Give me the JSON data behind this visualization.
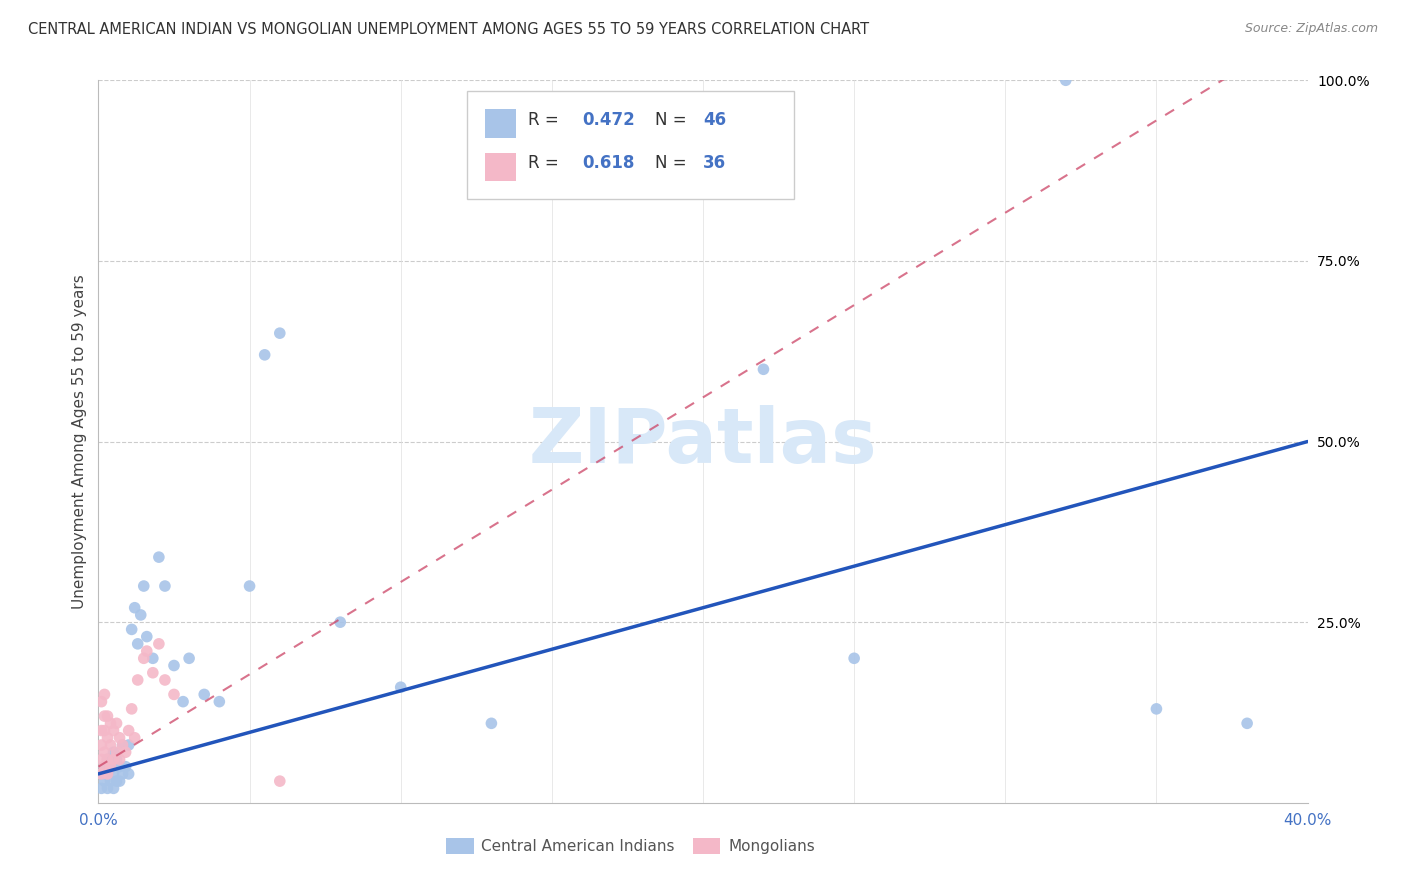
{
  "title": "CENTRAL AMERICAN INDIAN VS MONGOLIAN UNEMPLOYMENT AMONG AGES 55 TO 59 YEARS CORRELATION CHART",
  "source": "Source: ZipAtlas.com",
  "ylabel": "Unemployment Among Ages 55 to 59 years",
  "xlim": [
    0.0,
    0.4
  ],
  "ylim": [
    0.0,
    1.0
  ],
  "blue_color": "#a8c4e8",
  "pink_color": "#f4b8c8",
  "trend_blue_color": "#2255bb",
  "trend_pink_color": "#cc4466",
  "watermark_color": "#d8e8f8",
  "tick_color": "#4472c4",
  "blue_x": [
    0.001,
    0.001,
    0.002,
    0.002,
    0.003,
    0.003,
    0.003,
    0.004,
    0.004,
    0.005,
    0.005,
    0.005,
    0.006,
    0.006,
    0.007,
    0.007,
    0.008,
    0.008,
    0.009,
    0.01,
    0.01,
    0.011,
    0.012,
    0.013,
    0.014,
    0.015,
    0.016,
    0.018,
    0.02,
    0.022,
    0.025,
    0.028,
    0.03,
    0.035,
    0.04,
    0.05,
    0.055,
    0.06,
    0.08,
    0.1,
    0.13,
    0.22,
    0.25,
    0.32,
    0.35,
    0.38
  ],
  "blue_y": [
    0.02,
    0.04,
    0.03,
    0.05,
    0.02,
    0.04,
    0.06,
    0.03,
    0.05,
    0.02,
    0.04,
    0.07,
    0.03,
    0.06,
    0.03,
    0.05,
    0.04,
    0.08,
    0.05,
    0.04,
    0.08,
    0.24,
    0.27,
    0.22,
    0.26,
    0.3,
    0.23,
    0.2,
    0.34,
    0.3,
    0.19,
    0.14,
    0.2,
    0.15,
    0.14,
    0.3,
    0.62,
    0.65,
    0.25,
    0.16,
    0.11,
    0.6,
    0.2,
    1.0,
    0.13,
    0.11
  ],
  "pink_x": [
    0.001,
    0.001,
    0.001,
    0.001,
    0.001,
    0.002,
    0.002,
    0.002,
    0.002,
    0.002,
    0.003,
    0.003,
    0.003,
    0.003,
    0.004,
    0.004,
    0.004,
    0.005,
    0.005,
    0.006,
    0.006,
    0.007,
    0.007,
    0.008,
    0.009,
    0.01,
    0.011,
    0.012,
    0.013,
    0.015,
    0.016,
    0.018,
    0.02,
    0.022,
    0.025,
    0.06
  ],
  "pink_y": [
    0.04,
    0.06,
    0.08,
    0.1,
    0.14,
    0.05,
    0.07,
    0.1,
    0.12,
    0.15,
    0.04,
    0.06,
    0.09,
    0.12,
    0.05,
    0.08,
    0.11,
    0.06,
    0.1,
    0.07,
    0.11,
    0.06,
    0.09,
    0.08,
    0.07,
    0.1,
    0.13,
    0.09,
    0.17,
    0.2,
    0.21,
    0.18,
    0.22,
    0.17,
    0.15,
    0.03
  ],
  "blue_trend_x0": 0.0,
  "blue_trend_y0": 0.04,
  "blue_trend_x1": 0.4,
  "blue_trend_y1": 0.5,
  "pink_trend_x0": 0.0,
  "pink_trend_y0": 0.05,
  "pink_trend_x1": 0.09,
  "pink_trend_y1": 0.28
}
